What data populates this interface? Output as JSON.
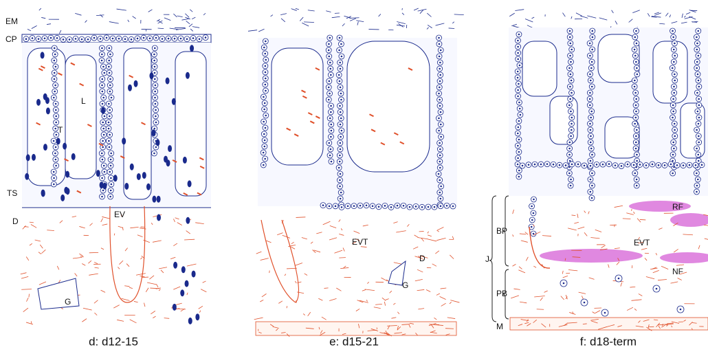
{
  "panels": [
    {
      "caption": "d: d12-15",
      "labels": [
        "EM",
        "CP",
        "L",
        "T",
        "TS",
        "D",
        "EV",
        "G"
      ]
    },
    {
      "caption": "e: d15-21",
      "labels": [
        "EVT",
        "D",
        "G"
      ]
    },
    {
      "caption": "f: d18-term",
      "labels": [
        "RF",
        "BP",
        "EVT",
        "J",
        "NF",
        "PB",
        "M"
      ]
    }
  ]
}
